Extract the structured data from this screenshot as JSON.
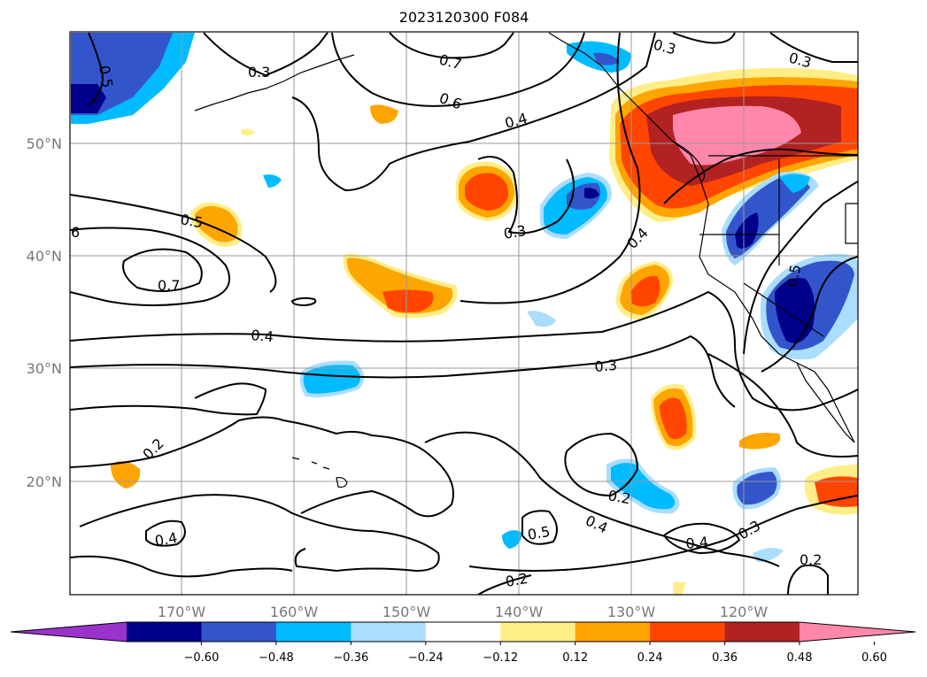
{
  "title": "2023120300 F084",
  "lon_ticks": [
    "170°W",
    "160°W",
    "150°W",
    "140°W",
    "130°W",
    "120°W"
  ],
  "lat_ticks": [
    "50°N",
    "40°N",
    "30°N",
    "20°N"
  ],
  "colorbar": {
    "tick_labels": [
      "−0.60",
      "−0.48",
      "−0.36",
      "−0.24",
      "−0.12",
      "0.12",
      "0.24",
      "0.36",
      "0.48",
      "0.60"
    ],
    "bins": [
      {
        "color": "#9933cc"
      },
      {
        "color": "#00008b"
      },
      {
        "color": "#3355cc"
      },
      {
        "color": "#00bbff"
      },
      {
        "color": "#aaddff"
      },
      {
        "color": "#ffffff"
      },
      {
        "color": "#ffee88"
      },
      {
        "color": "#ffa500"
      },
      {
        "color": "#ff4500"
      },
      {
        "color": "#b22222"
      },
      {
        "color": "#ff88aa"
      }
    ]
  },
  "contour_labels": [
    "0.5",
    "0.3",
    "0.7",
    "0.6",
    "0.4",
    "0.3",
    "0.3",
    "0.3",
    "0.4",
    "6",
    "0.5",
    "0.7",
    "0.4",
    "0.3",
    "0.5",
    "0.2",
    "0.2",
    "0.4",
    "0.5",
    "0.4",
    "0.4",
    "0.3",
    "0.2",
    "0.2"
  ]
}
